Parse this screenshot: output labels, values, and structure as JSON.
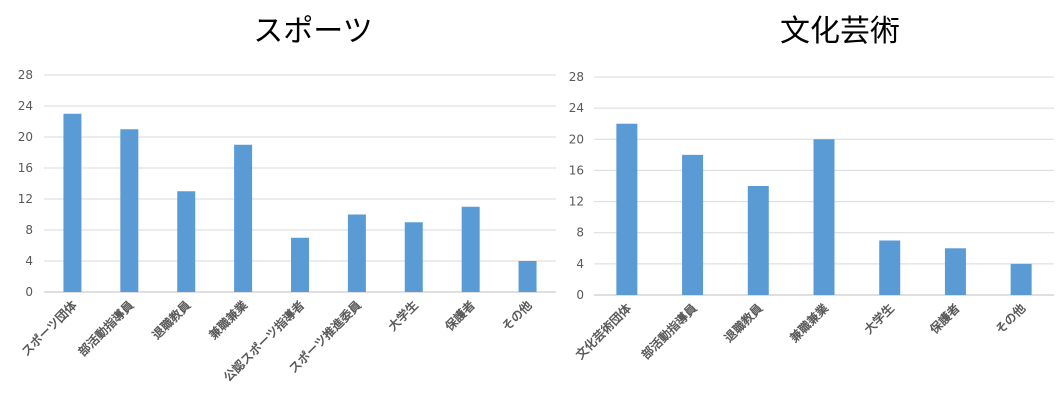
{
  "chart_data": [
    {
      "type": "bar",
      "title": "スポーツ",
      "categories": [
        "スポーツ団体",
        "部活動指導員",
        "退職教員",
        "兼職兼業",
        "公認スポーツ指導者",
        "スポーツ推進委員",
        "大学生",
        "保護者",
        "その他"
      ],
      "values": [
        23,
        21,
        13,
        19,
        7,
        10,
        9,
        11,
        4
      ],
      "ylim": [
        0,
        28
      ],
      "yticks": [
        0,
        4,
        8,
        12,
        16,
        20,
        24,
        28
      ],
      "grid": true,
      "color": "#5b9bd5"
    },
    {
      "type": "bar",
      "title": "文化芸術",
      "categories": [
        "文化芸術団体",
        "部活動指導員",
        "退職教員",
        "兼職兼業",
        "大学生",
        "保護者",
        "その他"
      ],
      "values": [
        22,
        18,
        14,
        20,
        7,
        6,
        4
      ],
      "ylim": [
        0,
        28
      ],
      "yticks": [
        0,
        4,
        8,
        12,
        16,
        20,
        24,
        28
      ],
      "grid": true,
      "color": "#5b9bd5"
    }
  ]
}
